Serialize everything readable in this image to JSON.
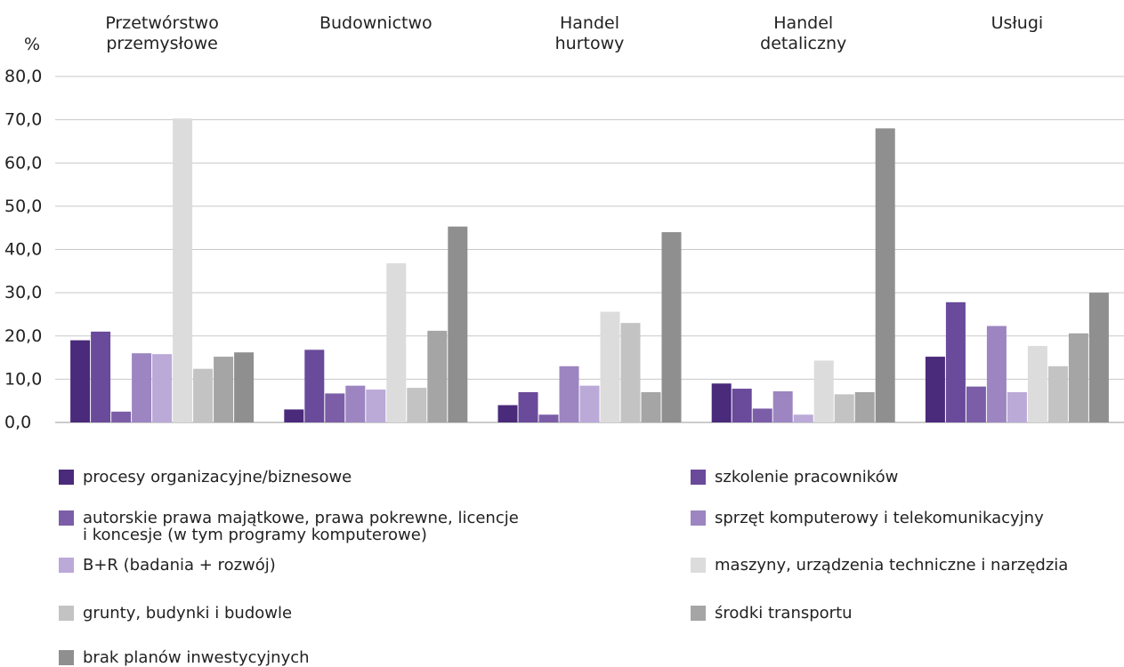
{
  "chart_data": {
    "type": "bar",
    "y_unit_label": "%",
    "categories": [
      "Przetwórstwo\nprzemysłowe",
      "Budownictwo",
      "Handel\nhurtowy",
      "Handel\ndetaliczny",
      "Usługi"
    ],
    "ylim": [
      0,
      80
    ],
    "yticks": [
      "0,0",
      "10,0",
      "20,0",
      "30,0",
      "40,0",
      "50,0",
      "60,0",
      "70,0",
      "80,0"
    ],
    "grid": true,
    "legend_position": "bottom",
    "series": [
      {
        "name": "procesy organizacyjne/biznesowe",
        "color": "#4a2a7a",
        "values": [
          19.0,
          3.0,
          4.0,
          9.0,
          15.2
        ]
      },
      {
        "name": "szkolenie pracowników",
        "color": "#6a4a9a",
        "values": [
          21.0,
          16.8,
          7.0,
          7.8,
          27.8
        ]
      },
      {
        "name": "autorskie prawa majątkowe, prawa pokrewne, licencje\ni koncesje (w tym programy komputerowe)",
        "color": "#7b5ea7",
        "values": [
          2.5,
          6.7,
          1.8,
          3.2,
          8.3
        ]
      },
      {
        "name": "sprzęt komputerowy i telekomunikacyjny",
        "color": "#9c85c0",
        "values": [
          16.0,
          8.5,
          13.0,
          7.2,
          22.3
        ]
      },
      {
        "name": "B+R (badania + rozwój)",
        "color": "#bba9d8",
        "values": [
          15.8,
          7.6,
          8.5,
          1.8,
          7.0
        ]
      },
      {
        "name": "maszyny, urządzenia techniczne i narzędzia",
        "color": "#dcdcdc",
        "values": [
          70.3,
          36.8,
          25.6,
          14.3,
          17.7
        ]
      },
      {
        "name": "grunty, budynki i budowle",
        "color": "#c3c3c3",
        "values": [
          12.4,
          8.0,
          23.0,
          6.5,
          13.0
        ]
      },
      {
        "name": "środki transportu",
        "color": "#a5a5a5",
        "values": [
          15.2,
          21.2,
          7.0,
          7.0,
          20.6
        ]
      },
      {
        "name": "brak planów inwestycyjnych",
        "color": "#8f8f8f",
        "values": [
          16.2,
          45.3,
          44.0,
          68.0,
          30.0
        ]
      }
    ]
  }
}
